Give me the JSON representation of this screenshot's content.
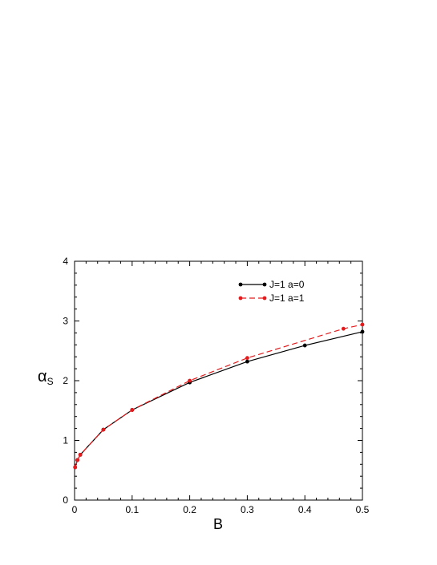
{
  "chart_data": {
    "type": "line",
    "xlabel": "B",
    "ylabel_main": "α",
    "ylabel_sub": "S",
    "xlim": [
      0,
      0.5
    ],
    "ylim": [
      0,
      4
    ],
    "x_ticks": [
      "0",
      "0.1",
      "0.2",
      "0.3",
      "0.4",
      "0.5"
    ],
    "y_ticks": [
      "0",
      "1",
      "2",
      "3",
      "4"
    ],
    "legend_position": "top-right",
    "series": [
      {
        "name": "J=1 a=0",
        "color": "#000000",
        "dash": "solid",
        "points": [
          [
            0.001,
            0.55
          ],
          [
            0.005,
            0.67
          ],
          [
            0.01,
            0.76
          ],
          [
            0.05,
            1.18
          ],
          [
            0.1,
            1.51
          ],
          [
            0.2,
            1.97
          ],
          [
            0.3,
            2.32
          ],
          [
            0.4,
            2.59
          ],
          [
            0.5,
            2.82
          ]
        ]
      },
      {
        "name": "J=1 a=1",
        "color": "#e41a1c",
        "dash": "dashed",
        "points": [
          [
            0.001,
            0.55
          ],
          [
            0.005,
            0.67
          ],
          [
            0.01,
            0.76
          ],
          [
            0.05,
            1.18
          ],
          [
            0.1,
            1.51
          ],
          [
            0.2,
            2.0
          ],
          [
            0.3,
            2.38
          ],
          [
            0.467,
            2.87
          ],
          [
            0.5,
            2.94
          ]
        ]
      }
    ]
  }
}
